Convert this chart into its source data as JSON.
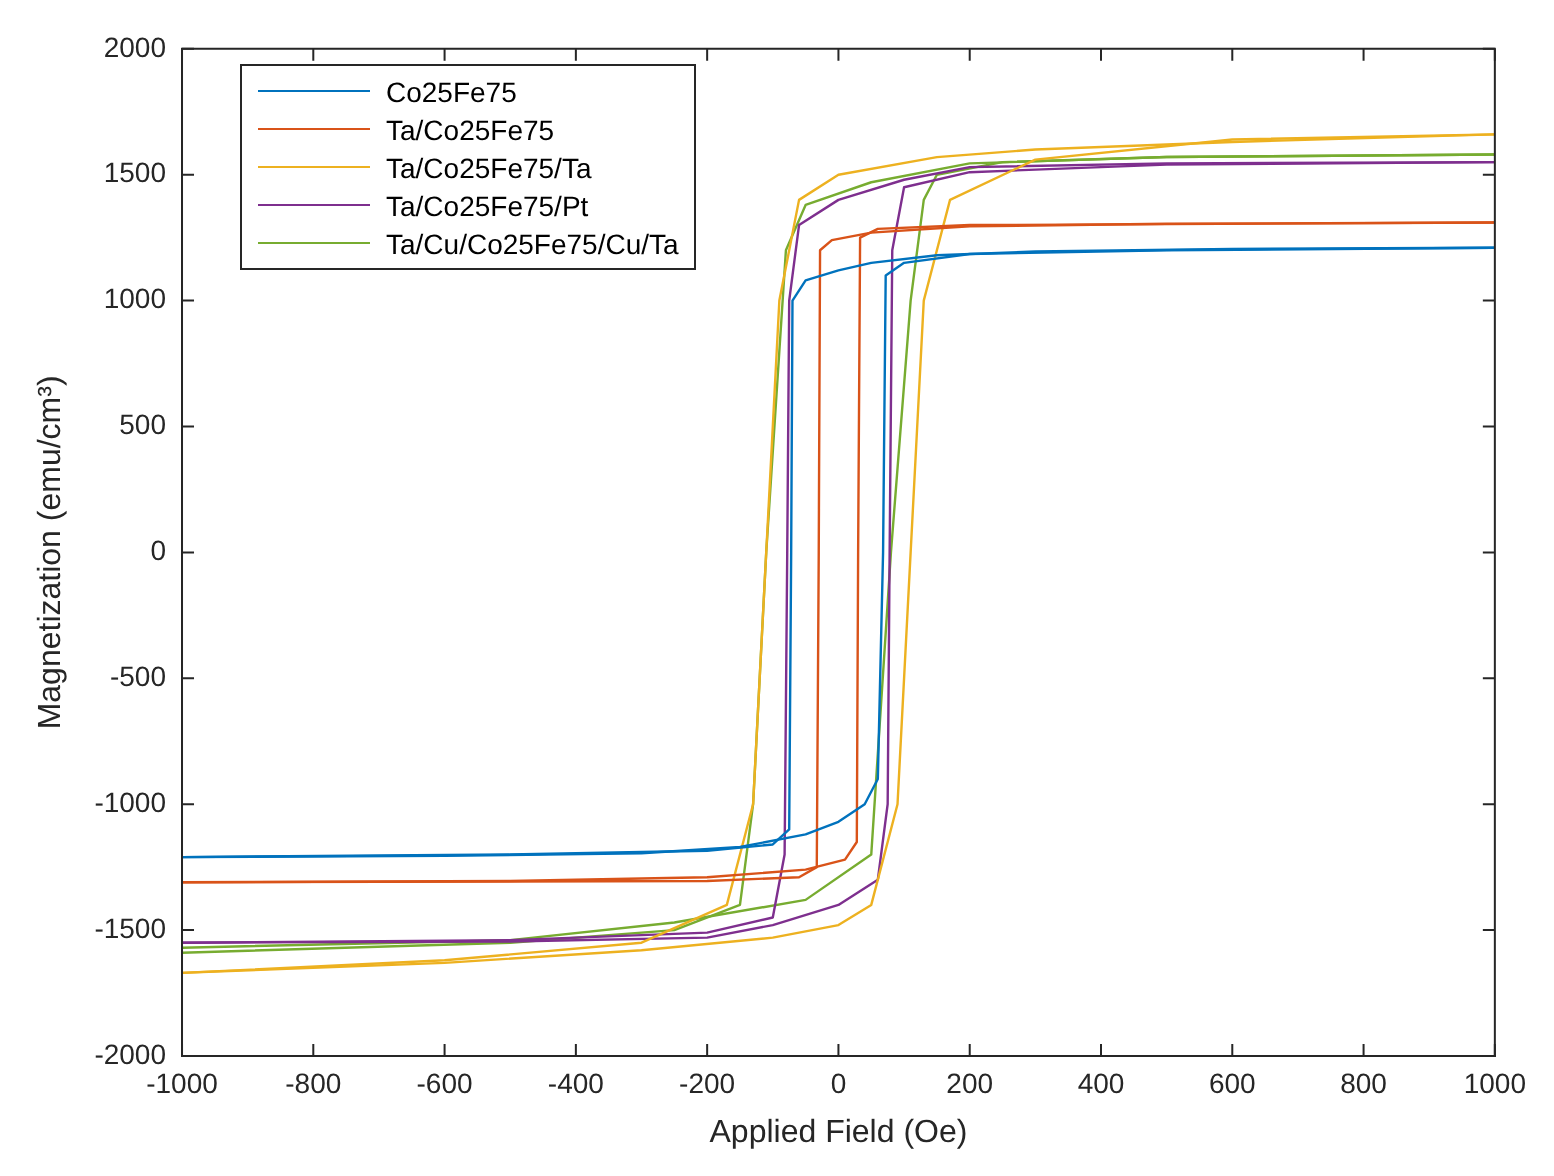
{
  "chart_data": {
    "type": "line",
    "xlabel": "Applied Field (Oe)",
    "ylabel": "Magnetization (emu/cm³)",
    "xlim": [
      -1000,
      1000
    ],
    "xticks": [
      -1000,
      -800,
      -600,
      -400,
      -200,
      0,
      200,
      400,
      600,
      800,
      1000
    ],
    "ylim": [
      -2000,
      2000
    ],
    "yticks": [
      -2000,
      -1500,
      -1000,
      -500,
      0,
      500,
      1000,
      1500,
      2000
    ],
    "grid": false,
    "legend": "top left",
    "marker": "none",
    "line_style": "solid",
    "series": [
      {
        "name": "Co25Fe75",
        "color": "#0072bd",
        "x": [
          -1000,
          -500,
          -200,
          -100,
          -75,
          -72,
          -70,
          -50,
          0,
          50,
          150,
          300,
          600,
          1000
        ],
        "values": [
          -1210,
          -1200,
          -1185,
          -1160,
          -1100,
          0,
          1000,
          1080,
          1120,
          1150,
          1180,
          1195,
          1205,
          1210
        ]
      },
      {
        "color": "#0072bd",
        "x": [
          -1000,
          -600,
          -300,
          -150,
          -50,
          0,
          40,
          60,
          68,
          72,
          100,
          200,
          500,
          1000
        ],
        "values": [
          -1210,
          -1205,
          -1195,
          -1170,
          -1120,
          -1070,
          -1000,
          -900,
          0,
          1100,
          1150,
          1185,
          1200,
          1210
        ]
      },
      {
        "name": "Ta/Co25Fe75",
        "color": "#d95319",
        "x": [
          -1000,
          -200,
          -60,
          -33,
          -30,
          -28,
          -10,
          50,
          200,
          500,
          1000
        ],
        "values": [
          -1310,
          -1305,
          -1290,
          -1250,
          0,
          1200,
          1240,
          1270,
          1295,
          1305,
          1310
        ]
      },
      {
        "color": "#d95319",
        "x": [
          -1000,
          -500,
          -200,
          -50,
          10,
          28,
          30,
          33,
          60,
          200,
          1000
        ],
        "values": [
          -1310,
          -1305,
          -1290,
          -1260,
          -1220,
          -1150,
          0,
          1250,
          1285,
          1300,
          1310
        ]
      },
      {
        "name": "Ta/Co25Fe75/Ta",
        "color": "#edb120",
        "x": [
          -1000,
          -600,
          -300,
          -170,
          -130,
          -110,
          -90,
          -60,
          0,
          150,
          300,
          600,
          1000
        ],
        "values": [
          -1670,
          -1620,
          -1550,
          -1400,
          -1000,
          0,
          1000,
          1400,
          1500,
          1570,
          1600,
          1630,
          1660
        ]
      },
      {
        "color": "#edb120",
        "x": [
          -1000,
          -600,
          -300,
          -100,
          0,
          50,
          90,
          110,
          130,
          170,
          300,
          600,
          1000
        ],
        "values": [
          -1670,
          -1630,
          -1580,
          -1530,
          -1480,
          -1400,
          -1000,
          0,
          1000,
          1400,
          1560,
          1640,
          1660
        ]
      },
      {
        "name": "Ta/Co25Fe75/Pt",
        "color": "#7e2f8e",
        "x": [
          -1000,
          -500,
          -200,
          -100,
          -82,
          -78,
          -75,
          -60,
          0,
          100,
          200,
          500,
          1000
        ],
        "values": [
          -1550,
          -1540,
          -1510,
          -1450,
          -1200,
          0,
          1000,
          1300,
          1400,
          1480,
          1530,
          1545,
          1550
        ]
      },
      {
        "color": "#7e2f8e",
        "x": [
          -1000,
          -500,
          -200,
          -100,
          0,
          60,
          75,
          78,
          82,
          100,
          200,
          500,
          1000
        ],
        "values": [
          -1550,
          -1545,
          -1530,
          -1480,
          -1400,
          -1300,
          -1000,
          0,
          1200,
          1450,
          1510,
          1540,
          1550
        ]
      },
      {
        "name": "Ta/Cu/Co25Fe75/Cu/Ta",
        "color": "#77ac30",
        "x": [
          -1000,
          -500,
          -250,
          -150,
          -130,
          -110,
          -80,
          -50,
          50,
          200,
          500,
          1000
        ],
        "values": [
          -1590,
          -1550,
          -1500,
          -1400,
          -1000,
          0,
          1200,
          1380,
          1470,
          1545,
          1570,
          1580
        ]
      },
      {
        "color": "#77ac30",
        "x": [
          -1000,
          -500,
          -250,
          -50,
          50,
          80,
          110,
          130,
          150,
          250,
          500,
          1000
        ],
        "values": [
          -1570,
          -1540,
          -1470,
          -1380,
          -1200,
          0,
          1000,
          1400,
          1500,
          1550,
          1570,
          1580
        ]
      }
    ]
  }
}
